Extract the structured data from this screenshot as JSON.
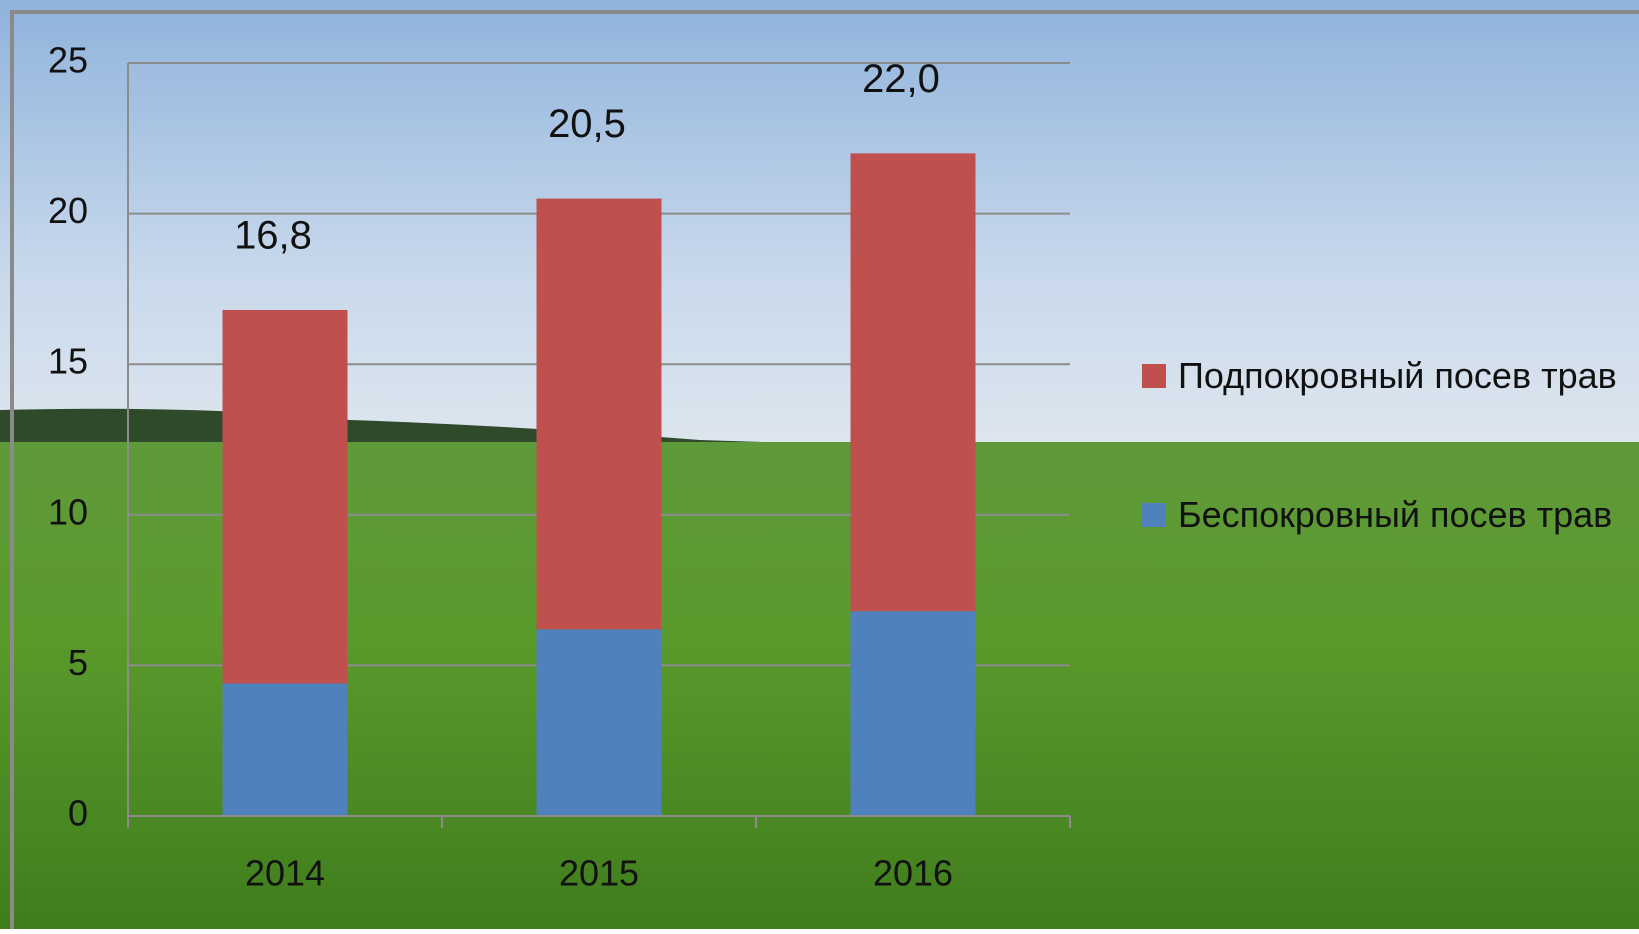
{
  "chart_data": {
    "type": "stacked_bar",
    "categories": [
      "2014",
      "2015",
      "2016"
    ],
    "series": [
      {
        "name": "Беспокровный посев трав",
        "color": "#4f81bd",
        "values": [
          4.4,
          6.2,
          6.8
        ]
      },
      {
        "name": "Подпокровный посев трав",
        "color": "#c0504d",
        "values": [
          12.4,
          14.3,
          15.2
        ]
      }
    ],
    "totals": [
      16.8,
      20.5,
      22.0
    ],
    "total_labels": [
      "16,8",
      "20,5",
      "22,0"
    ],
    "ylim": [
      0,
      25
    ],
    "yticks": [
      0,
      5,
      10,
      15,
      20,
      25
    ],
    "grid": true,
    "legend": "right"
  }
}
